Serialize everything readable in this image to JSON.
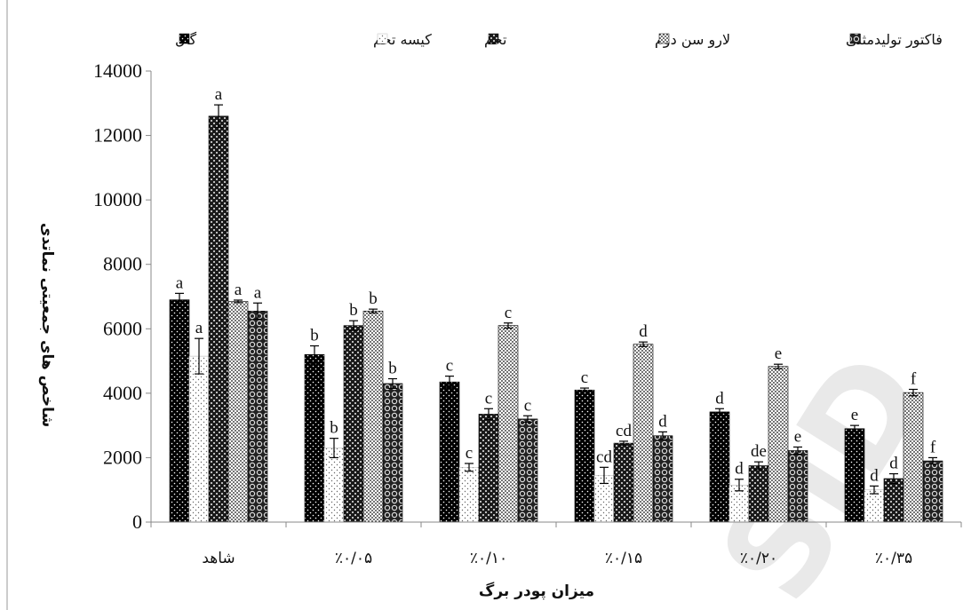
{
  "chart_data": {
    "type": "bar",
    "title": "",
    "xlabel": "میزان پودر برگ",
    "ylabel": "شاخص های جمعیتی نماتدی",
    "ylim": [
      0,
      14000
    ],
    "yticks": [
      "0",
      "2000",
      "4000",
      "6000",
      "8000",
      "10000",
      "12000",
      "14000"
    ],
    "categories": [
      "شاهد",
      "٪۰/۰۵",
      "٪۰/۱۰",
      "٪۰/۱۵",
      "٪۰/۲۰",
      "٪۰/۳۵"
    ],
    "legend_position": "top",
    "watermark": "SID",
    "series": [
      {
        "name": "گال",
        "pattern": "dots-on-black",
        "values": [
          6900,
          5200,
          4350,
          4100,
          3420,
          2900
        ],
        "errors": [
          200,
          270,
          180,
          60,
          100,
          100
        ],
        "labels": [
          "a",
          "b",
          "c",
          "c",
          "d",
          "e"
        ]
      },
      {
        "name": "کیسه تخم",
        "pattern": "sparse-dots-on-white",
        "values": [
          5150,
          2300,
          1700,
          1450,
          1150,
          1000
        ],
        "errors": [
          550,
          300,
          120,
          250,
          180,
          120
        ],
        "labels": [
          "a",
          "b",
          "c",
          "cd",
          "d",
          "d"
        ]
      },
      {
        "name": "تخم",
        "pattern": "checker-dark",
        "values": [
          12600,
          6100,
          3350,
          2450,
          1750,
          1350
        ],
        "errors": [
          350,
          150,
          170,
          60,
          120,
          150
        ],
        "labels": [
          "a",
          "b",
          "c",
          "cd",
          "de",
          "d"
        ]
      },
      {
        "name": "لارو سن دوم",
        "pattern": "dense-dots-on-white",
        "values": [
          6850,
          6550,
          6100,
          5520,
          4830,
          4020
        ],
        "errors": [
          40,
          60,
          80,
          70,
          70,
          100
        ],
        "labels": [
          "a",
          "b",
          "c",
          "d",
          "e",
          "f"
        ]
      },
      {
        "name": "فاکتور تولیدمثلی",
        "pattern": "rings",
        "values": [
          6550,
          4300,
          3200,
          2680,
          2220,
          1900
        ],
        "errors": [
          250,
          150,
          100,
          120,
          110,
          100
        ],
        "labels": [
          "a",
          "b",
          "c",
          "d",
          "e",
          "f"
        ]
      }
    ]
  }
}
